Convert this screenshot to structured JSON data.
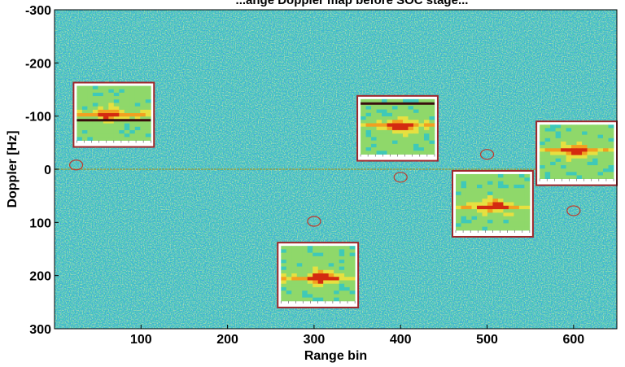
{
  "chart_data": {
    "type": "heatmap",
    "title": "...ange Doppler map before SOC stage...",
    "xlabel": "Range bin",
    "ylabel": "Doppler [Hz]",
    "xlim": [
      0,
      650
    ],
    "ylim": [
      -300,
      300
    ],
    "y_inverted": true,
    "x_ticks": [
      100,
      200,
      300,
      400,
      500,
      600
    ],
    "y_ticks": [
      -300,
      -200,
      -100,
      0,
      100,
      200,
      300
    ],
    "grid": false,
    "colormap": "jet",
    "background_color": "#3fc9b8",
    "zero_doppler_line": 0,
    "targets": [
      {
        "range": 25,
        "doppler": -8
      },
      {
        "range": 300,
        "doppler": 98
      },
      {
        "range": 400,
        "doppler": 15
      },
      {
        "range": 500,
        "doppler": -28
      },
      {
        "range": 600,
        "doppler": 78
      }
    ],
    "insets": [
      {
        "range_min": 22,
        "range_max": 115,
        "doppler_min": -163,
        "doppler_max": -42,
        "line_rows": [
          0.63
        ],
        "peak_row": 0.5,
        "peak_col": 0.4
      },
      {
        "range_min": 350,
        "range_max": 443,
        "doppler_min": -138,
        "doppler_max": -16,
        "line_rows": [
          0.08
        ],
        "peak_row": 0.45,
        "peak_col": 0.5
      },
      {
        "range_min": 258,
        "range_max": 351,
        "doppler_min": 138,
        "doppler_max": 260,
        "line_rows": [],
        "peak_row": 0.55,
        "peak_col": 0.5
      },
      {
        "range_min": 460,
        "range_max": 553,
        "doppler_min": 3,
        "doppler_max": 127,
        "line_rows": [],
        "peak_row": 0.55,
        "peak_col": 0.5
      },
      {
        "range_min": 557,
        "range_max": 650,
        "doppler_min": -90,
        "doppler_max": 30,
        "line_rows": [],
        "peak_row": 0.45,
        "peak_col": 0.45
      }
    ]
  }
}
